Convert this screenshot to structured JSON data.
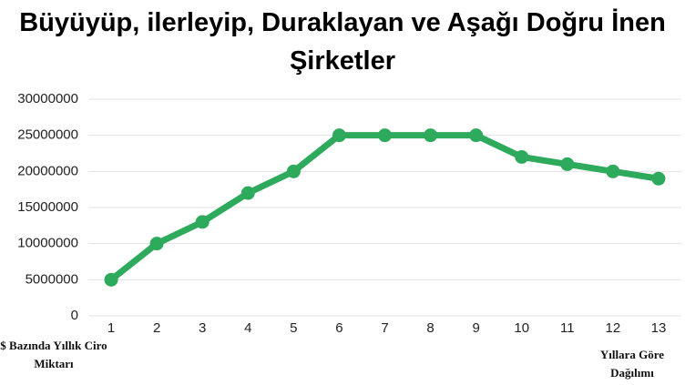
{
  "chart_data": {
    "type": "line",
    "title": "Büyüyüp, ilerleyip, Duraklayan ve Aşağı Doğru İnen Şirketler",
    "x": [
      1,
      2,
      3,
      4,
      5,
      6,
      7,
      8,
      9,
      10,
      11,
      12,
      13
    ],
    "series": [
      {
        "color": "#2eaa5c",
        "values": [
          5000000,
          10000000,
          13000000,
          17000000,
          20000000,
          25000000,
          25000000,
          25000000,
          25000000,
          22000000,
          21000000,
          20000000,
          19000000
        ]
      }
    ],
    "xlim": [
      0.5,
      13.5
    ],
    "xticks": [
      1,
      2,
      3,
      4,
      5,
      6,
      7,
      8,
      9,
      10,
      11,
      12,
      13
    ],
    "ylim": [
      0,
      30000000
    ],
    "yticks": [
      0,
      5000000,
      10000000,
      15000000,
      20000000,
      25000000,
      30000000
    ],
    "grid": true,
    "y_label": "$ Bazında Yıllık Ciro Miktarı",
    "x_label": "Yıllara Göre Dağılımı"
  }
}
